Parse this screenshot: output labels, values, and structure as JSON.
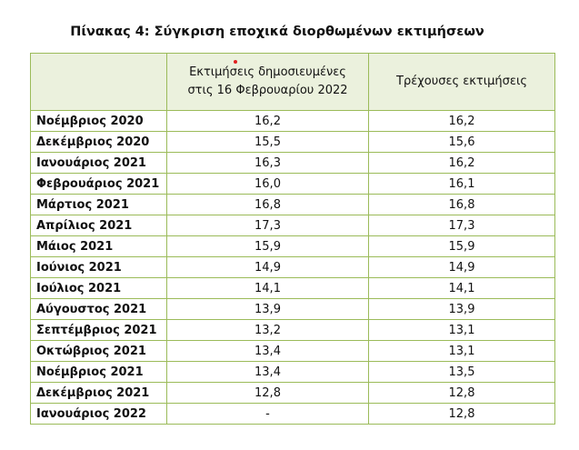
{
  "title": "Πίνακας 4: Σύγκριση εποχικά διορθωμένων εκτιμήσεων",
  "table": {
    "header": [
      "",
      [
        "Εκτιμήσεις δημοσιευμένες",
        "στις 16 Φεβρουαρίου 2022"
      ],
      "Τρέχουσες εκτιμήσεις"
    ],
    "rows": [
      [
        "Νοέμβριος 2020",
        "16,2",
        "16,2"
      ],
      [
        "Δεκέμβριος 2020",
        "15,5",
        "15,6"
      ],
      [
        "Ιανουάριος 2021",
        "16,3",
        "16,2"
      ],
      [
        "Φεβρουάριος 2021",
        "16,0",
        "16,1"
      ],
      [
        "Μάρτιος 2021",
        "16,8",
        "16,8"
      ],
      [
        "Απρίλιος 2021",
        "17,3",
        "17,3"
      ],
      [
        "Μάιος 2021",
        "15,9",
        "15,9"
      ],
      [
        "Ιούνιος 2021",
        "14,9",
        "14,9"
      ],
      [
        "Ιούλιος 2021",
        "14,1",
        "14,1"
      ],
      [
        "Αύγουστος 2021",
        "13,9",
        "13,9"
      ],
      [
        "Σεπτέμβριος 2021",
        "13,2",
        "13,1"
      ],
      [
        "Οκτώβριος 2021",
        "13,4",
        "13,1"
      ],
      [
        "Νοέμβριος 2021",
        "13,4",
        "13,5"
      ],
      [
        "Δεκέμβριος 2021",
        "12,8",
        "12,8"
      ],
      [
        "Ιανουάριος 2022",
        "-",
        "12,8"
      ]
    ]
  }
}
